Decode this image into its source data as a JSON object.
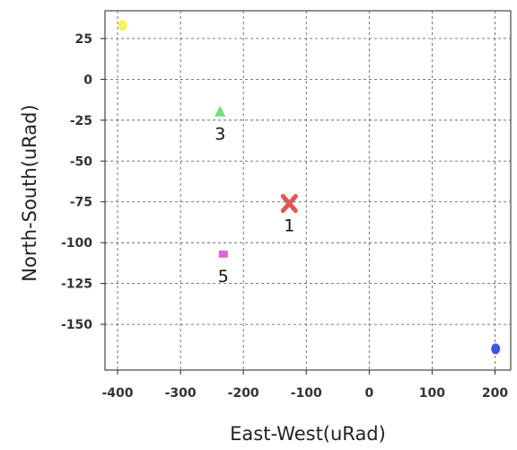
{
  "chart_data": {
    "type": "scatter",
    "title": "",
    "xlabel": "East-West(uRad)",
    "ylabel": "North-South(uRad)",
    "xlim": [
      -420,
      225
    ],
    "ylim": [
      -178,
      42
    ],
    "x_ticks": [
      -400,
      -300,
      -200,
      -100,
      0,
      100,
      200
    ],
    "y_ticks": [
      25,
      0,
      -25,
      -50,
      -75,
      -100,
      -125,
      -150
    ],
    "grid": true,
    "legend": "none",
    "points": [
      {
        "label": "",
        "x": -392,
        "y": 33,
        "color": "#f4f45a",
        "marker": "circle"
      },
      {
        "label": "3",
        "x": -237,
        "y": -20,
        "color": "#6de27a",
        "marker": "triangle"
      },
      {
        "label": "1",
        "x": -127,
        "y": -76,
        "color": "#e05757",
        "marker": "x"
      },
      {
        "label": "5",
        "x": -232,
        "y": -107,
        "color": "#d86ad8",
        "marker": "square"
      },
      {
        "label": "",
        "x": 201,
        "y": -165,
        "color": "#3d54e0",
        "marker": "circle"
      }
    ]
  }
}
